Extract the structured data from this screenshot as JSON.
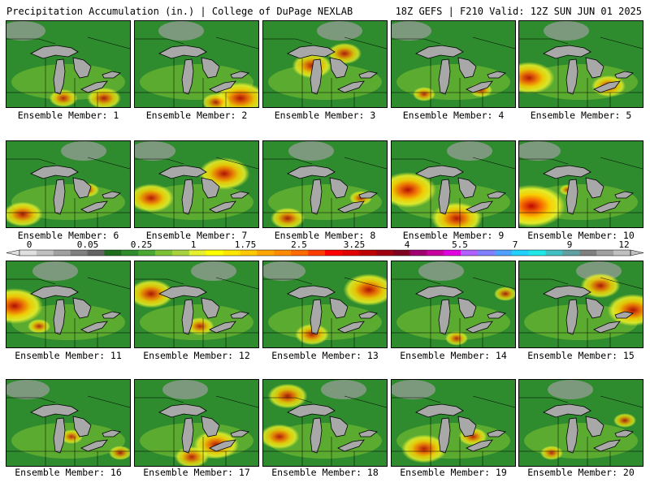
{
  "header": {
    "title": "Precipitation Accumulation (in.) | College of DuPage NEXLAB",
    "valid": "18Z GEFS | F210 Valid: 12Z SUN JUN 01 2025"
  },
  "legend": {
    "ticks": [
      "0",
      "0.05",
      "0.25",
      "1",
      "1.75",
      "2.5",
      "3.25",
      "4",
      "5.5",
      "7",
      "9",
      "12"
    ],
    "colors": [
      "#e0e0e0",
      "#c0c0c0",
      "#a0a0a0",
      "#808080",
      "#636363",
      "#1e6e1e",
      "#2e8b2e",
      "#4aa832",
      "#7cc234",
      "#a8d23c",
      "#e6f02c",
      "#ffff00",
      "#ffe600",
      "#ffc800",
      "#ffa500",
      "#ff8c00",
      "#ff6a00",
      "#ff3c00",
      "#ff0000",
      "#e00000",
      "#c00000",
      "#a00010",
      "#800020",
      "#a00070",
      "#c800a0",
      "#e000e0",
      "#b060ff",
      "#8080ff",
      "#50a0ff",
      "#20d0ff",
      "#20e8e8",
      "#40c0c0",
      "#60a0a0",
      "#808080",
      "#a0a0a0",
      "#c0c0c0"
    ]
  },
  "members": [
    {
      "label": "Ensemble Member: 1",
      "hot": [
        [
          70,
          95,
          0.5
        ],
        [
          120,
          95,
          0.6
        ]
      ]
    },
    {
      "label": "Ensemble Member: 2",
      "hot": [
        [
          130,
          95,
          0.9
        ],
        [
          100,
          100,
          0.5
        ]
      ]
    },
    {
      "label": "Ensemble Member: 3",
      "hot": [
        [
          60,
          55,
          0.7
        ],
        [
          100,
          40,
          0.6
        ]
      ]
    },
    {
      "label": "Ensemble Member: 4",
      "hot": [
        [
          40,
          90,
          0.4
        ],
        [
          110,
          85,
          0.4
        ]
      ]
    },
    {
      "label": "Ensemble Member: 5",
      "hot": [
        [
          12,
          70,
          0.9
        ],
        [
          110,
          80,
          0.6
        ]
      ]
    },
    {
      "label": "Ensemble Member: 6",
      "hot": [
        [
          20,
          90,
          0.7
        ],
        [
          100,
          60,
          0.4
        ]
      ]
    },
    {
      "label": "Ensemble Member: 7",
      "hot": [
        [
          110,
          40,
          0.9
        ],
        [
          20,
          70,
          0.8
        ]
      ]
    },
    {
      "label": "Ensemble Member: 8",
      "hot": [
        [
          30,
          95,
          0.6
        ],
        [
          120,
          70,
          0.4
        ]
      ]
    },
    {
      "label": "Ensemble Member: 9",
      "hot": [
        [
          20,
          60,
          1.0
        ],
        [
          80,
          95,
          0.9
        ]
      ]
    },
    {
      "label": "Ensemble Member: 10",
      "hot": [
        [
          15,
          80,
          1.2
        ],
        [
          60,
          60,
          0.3
        ]
      ]
    },
    {
      "label": "Ensemble Member: 11",
      "hot": [
        [
          10,
          55,
          1.0
        ],
        [
          40,
          80,
          0.4
        ]
      ]
    },
    {
      "label": "Ensemble Member: 12",
      "hot": [
        [
          20,
          40,
          0.8
        ],
        [
          80,
          80,
          0.5
        ]
      ]
    },
    {
      "label": "Ensemble Member: 13",
      "hot": [
        [
          130,
          35,
          0.9
        ],
        [
          60,
          90,
          0.6
        ]
      ]
    },
    {
      "label": "Ensemble Member: 14",
      "hot": [
        [
          140,
          40,
          0.4
        ],
        [
          80,
          95,
          0.4
        ]
      ]
    },
    {
      "label": "Ensemble Member: 15",
      "hot": [
        [
          140,
          60,
          0.9
        ],
        [
          100,
          30,
          0.7
        ]
      ]
    },
    {
      "label": "Ensemble Member: 16",
      "hot": [
        [
          80,
          70,
          0.4
        ],
        [
          140,
          90,
          0.4
        ]
      ]
    },
    {
      "label": "Ensemble Member: 17",
      "hot": [
        [
          100,
          80,
          0.8
        ],
        [
          70,
          95,
          0.6
        ]
      ]
    },
    {
      "label": "Ensemble Member: 18",
      "hot": [
        [
          30,
          20,
          0.7
        ],
        [
          20,
          70,
          0.7
        ]
      ]
    },
    {
      "label": "Ensemble Member: 19",
      "hot": [
        [
          40,
          85,
          0.8
        ],
        [
          100,
          70,
          0.5
        ]
      ]
    },
    {
      "label": "Ensemble Member: 20",
      "hot": [
        [
          130,
          50,
          0.4
        ],
        [
          40,
          90,
          0.4
        ]
      ]
    }
  ]
}
